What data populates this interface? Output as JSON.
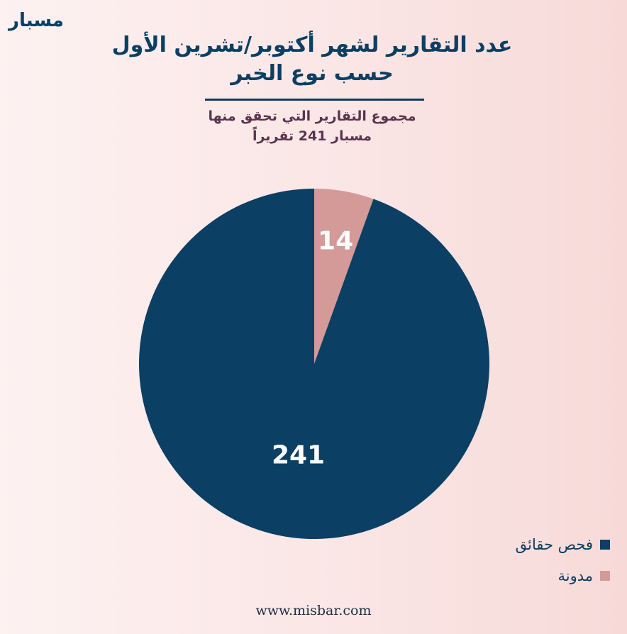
{
  "brand": {
    "logo_text": "مسبار",
    "website": "www.misbar.com"
  },
  "colors": {
    "primary": "#0b3f63",
    "secondary": "#d49a97",
    "subtitle": "#5a3450"
  },
  "chart_data": {
    "type": "pie",
    "title": "عدد التقارير لشهر أكتوبر/تشرين الأول حسب نوع الخبر",
    "title_lines": [
      "عدد التقارير لشهر أكتوبر/تشرين الأول",
      "حسب نوع الخبر"
    ],
    "subtitle": "مجموع التقارير التي تحقق منها مسبار 241 تقريراً",
    "subtitle_lines": [
      "مجموع التقارير التي تحقق منها",
      "مسبار 241 تقريراً"
    ],
    "categories": [
      "فحص حقائق",
      "مدونة"
    ],
    "values": [
      241,
      14
    ],
    "data_labels": [
      "241",
      "14"
    ],
    "colors": [
      "#0b3f63",
      "#d49a97"
    ],
    "legend_position": "bottom-right"
  }
}
